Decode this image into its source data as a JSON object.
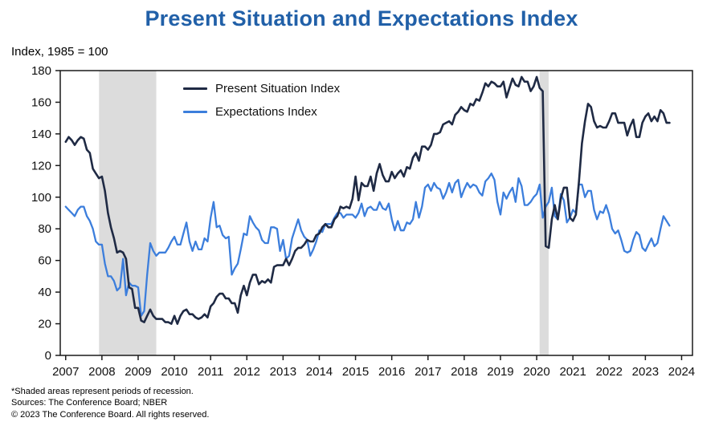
{
  "title": "Present Situation and Expectations Index",
  "subtitle": "Index, 1985 = 100",
  "footnotes": [
    "*Shaded areas represent periods of recession.",
    "Sources: The Conference Board;  NBER",
    "© 2023 The Conference Board. All rights reserved."
  ],
  "colors": {
    "title": "#2160A8",
    "present": "#1F2A44",
    "expectations": "#3C7EDC",
    "recession": "#DCDCDC",
    "axis": "#1a1a1a"
  },
  "chart_data": {
    "type": "line",
    "title": "Present Situation and Expectations Index",
    "ylabel": "Index, 1985 = 100",
    "x_start": 2007.0,
    "x_step_months": 1,
    "xlim": [
      2006.85,
      2024.3
    ],
    "ylim": [
      0,
      180
    ],
    "y_ticks": [
      0,
      20,
      40,
      60,
      80,
      100,
      120,
      140,
      160,
      180
    ],
    "x_ticks": [
      2007,
      2008,
      2009,
      2010,
      2011,
      2012,
      2013,
      2014,
      2015,
      2016,
      2017,
      2018,
      2019,
      2020,
      2021,
      2022,
      2023,
      2024
    ],
    "legend": [
      "Present Situation Index",
      "Expectations Index"
    ],
    "legend_position": "top-left-inside",
    "grid": false,
    "recession_bands": [
      [
        2007.92,
        2009.5
      ],
      [
        2020.08,
        2020.33
      ]
    ],
    "series": [
      {
        "name": "Present Situation Index",
        "color_key": "present",
        "stroke_width": 2.6,
        "values": [
          135,
          138,
          136,
          133,
          136,
          138,
          137,
          130,
          128,
          118,
          115,
          112,
          113,
          104,
          90,
          81,
          74,
          65,
          66,
          65,
          61,
          43,
          42,
          30,
          30,
          22,
          21,
          25,
          29,
          25,
          23,
          23,
          23,
          21,
          21,
          20,
          25,
          20,
          25,
          28,
          29,
          26,
          26,
          24,
          23,
          24,
          26,
          24,
          31,
          33,
          37,
          39,
          39,
          36,
          36,
          33,
          33,
          27,
          38,
          44,
          38,
          46,
          51,
          51,
          45,
          47,
          46,
          48,
          46,
          56,
          57,
          57,
          57,
          61,
          57,
          61,
          66,
          68,
          68,
          70,
          73,
          72,
          72,
          76,
          77,
          81,
          83,
          81,
          81,
          86,
          88,
          94,
          93,
          94,
          93,
          99,
          113,
          98,
          109,
          107,
          107,
          113,
          104,
          115,
          121,
          114,
          110,
          110,
          116,
          112,
          115,
          117,
          113,
          119,
          118,
          125,
          128,
          123,
          132,
          132,
          130,
          133,
          140,
          140,
          141,
          146,
          147,
          148,
          146,
          152,
          154,
          157,
          155,
          154,
          159,
          158,
          162,
          161,
          166,
          172,
          170,
          173,
          172,
          170,
          170,
          173,
          163,
          169,
          175,
          171,
          170,
          176,
          173,
          173,
          167,
          170,
          176,
          169,
          167,
          69,
          68,
          86,
          95,
          86,
          99,
          106,
          106,
          87,
          85,
          89,
          110,
          134,
          148,
          159,
          157,
          148,
          144,
          145,
          144,
          144,
          148,
          153,
          153,
          147,
          147,
          147,
          139,
          145,
          149,
          138,
          138,
          147,
          151,
          153,
          148,
          151,
          148,
          155,
          153,
          147,
          147
        ]
      },
      {
        "name": "Expectations Index",
        "color_key": "expectations",
        "stroke_width": 2.3,
        "values": [
          94,
          92,
          90,
          88,
          92,
          94,
          94,
          88,
          85,
          80,
          72,
          70,
          70,
          58,
          50,
          50,
          47,
          41,
          43,
          61,
          38,
          46,
          44,
          44,
          43,
          25,
          28,
          51,
          71,
          66,
          63,
          65,
          65,
          65,
          68,
          72,
          75,
          70,
          70,
          77,
          84,
          72,
          66,
          72,
          67,
          67,
          74,
          72,
          87,
          97,
          81,
          82,
          76,
          74,
          75,
          51,
          55,
          58,
          67,
          77,
          76,
          88,
          84,
          81,
          79,
          73,
          71,
          71,
          81,
          81,
          80,
          66,
          73,
          61,
          63,
          74,
          80,
          86,
          79,
          75,
          73,
          63,
          67,
          72,
          79,
          78,
          83,
          83,
          83,
          87,
          90,
          90,
          87,
          89,
          89,
          89,
          87,
          90,
          96,
          88,
          93,
          94,
          92,
          92,
          97,
          93,
          92,
          96,
          86,
          79,
          85,
          79,
          79,
          84,
          83,
          86,
          97,
          87,
          94,
          106,
          108,
          104,
          109,
          106,
          105,
          99,
          103,
          109,
          103,
          109,
          111,
          100,
          105,
          109,
          106,
          108,
          107,
          103,
          101,
          110,
          112,
          115,
          111,
          97,
          89,
          103,
          99,
          103,
          106,
          97,
          112,
          107,
          95,
          95,
          97,
          100,
          102,
          108,
          87,
          94,
          97,
          106,
          88,
          86,
          102,
          98,
          84,
          87,
          92,
          90,
          108,
          108,
          100,
          104,
          104,
          92,
          86,
          91,
          90,
          95,
          89,
          80,
          77,
          79,
          73,
          66,
          65,
          66,
          73,
          78,
          76,
          68,
          66,
          70,
          74,
          69,
          71,
          80,
          88,
          85,
          82
        ]
      }
    ]
  }
}
